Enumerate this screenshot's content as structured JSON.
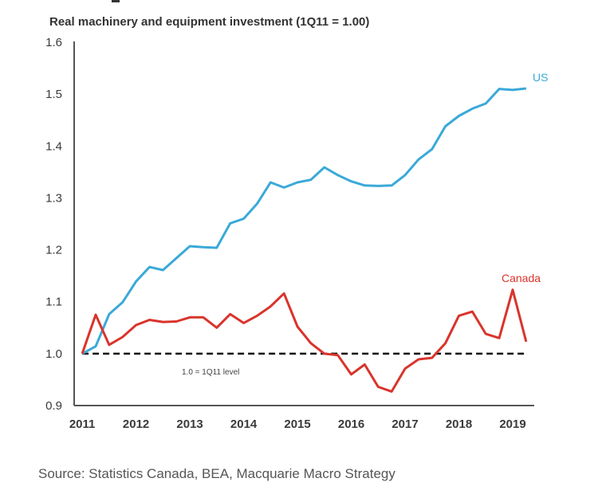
{
  "chart_data": {
    "type": "line",
    "title": "Real machinery and equipment investment (1Q11 = 1.00)",
    "xlabel": "",
    "ylabel": "",
    "ylim": [
      0.9,
      1.6
    ],
    "yticks": [
      "1.6",
      "1.5",
      "1.4",
      "1.3",
      "1.2",
      "1.1",
      "1.0",
      "0.9"
    ],
    "ytick_values": [
      1.6,
      1.5,
      1.4,
      1.3,
      1.2,
      1.1,
      1.0,
      0.9
    ],
    "xticks": [
      "2011",
      "2012",
      "2013",
      "2014",
      "2015",
      "2016",
      "2017",
      "2018",
      "2019"
    ],
    "xtick_values": [
      2011,
      2012,
      2013,
      2014,
      2015,
      2016,
      2017,
      2018,
      2019
    ],
    "xlim": [
      2010.85,
      2019.4
    ],
    "x_start": 2011.0,
    "x_step": 0.25,
    "grid": false,
    "legend": "inline-labels",
    "series": [
      {
        "name": "US",
        "color": "#3aa9d8",
        "values": [
          1.0,
          1.014,
          1.076,
          1.099,
          1.139,
          1.167,
          1.161,
          1.184,
          1.207,
          1.205,
          1.204,
          1.251,
          1.26,
          1.289,
          1.33,
          1.32,
          1.33,
          1.335,
          1.359,
          1.344,
          1.332,
          1.324,
          1.323,
          1.324,
          1.344,
          1.374,
          1.394,
          1.438,
          1.458,
          1.472,
          1.482,
          1.51,
          1.508,
          1.511
        ]
      },
      {
        "name": "Canada",
        "color": "#d9342b",
        "values": [
          1.0,
          1.075,
          1.017,
          1.032,
          1.055,
          1.065,
          1.061,
          1.062,
          1.07,
          1.07,
          1.05,
          1.076,
          1.059,
          1.073,
          1.091,
          1.116,
          1.052,
          1.02,
          1.0,
          0.997,
          0.96,
          0.979,
          0.936,
          0.927,
          0.971,
          0.989,
          0.992,
          1.02,
          1.073,
          1.081,
          1.038,
          1.03,
          1.123,
          1.023
        ]
      }
    ],
    "reference_line": {
      "value": 1.0,
      "label": "1.0 = 1Q11 level",
      "style": "dashed",
      "color": "#111111"
    },
    "annotations": [
      {
        "text": "US",
        "series": "US"
      },
      {
        "text": "Canada",
        "series": "Canada"
      }
    ],
    "source": "Source:  Statistics Canada, BEA, Macquarie Macro Strategy"
  }
}
